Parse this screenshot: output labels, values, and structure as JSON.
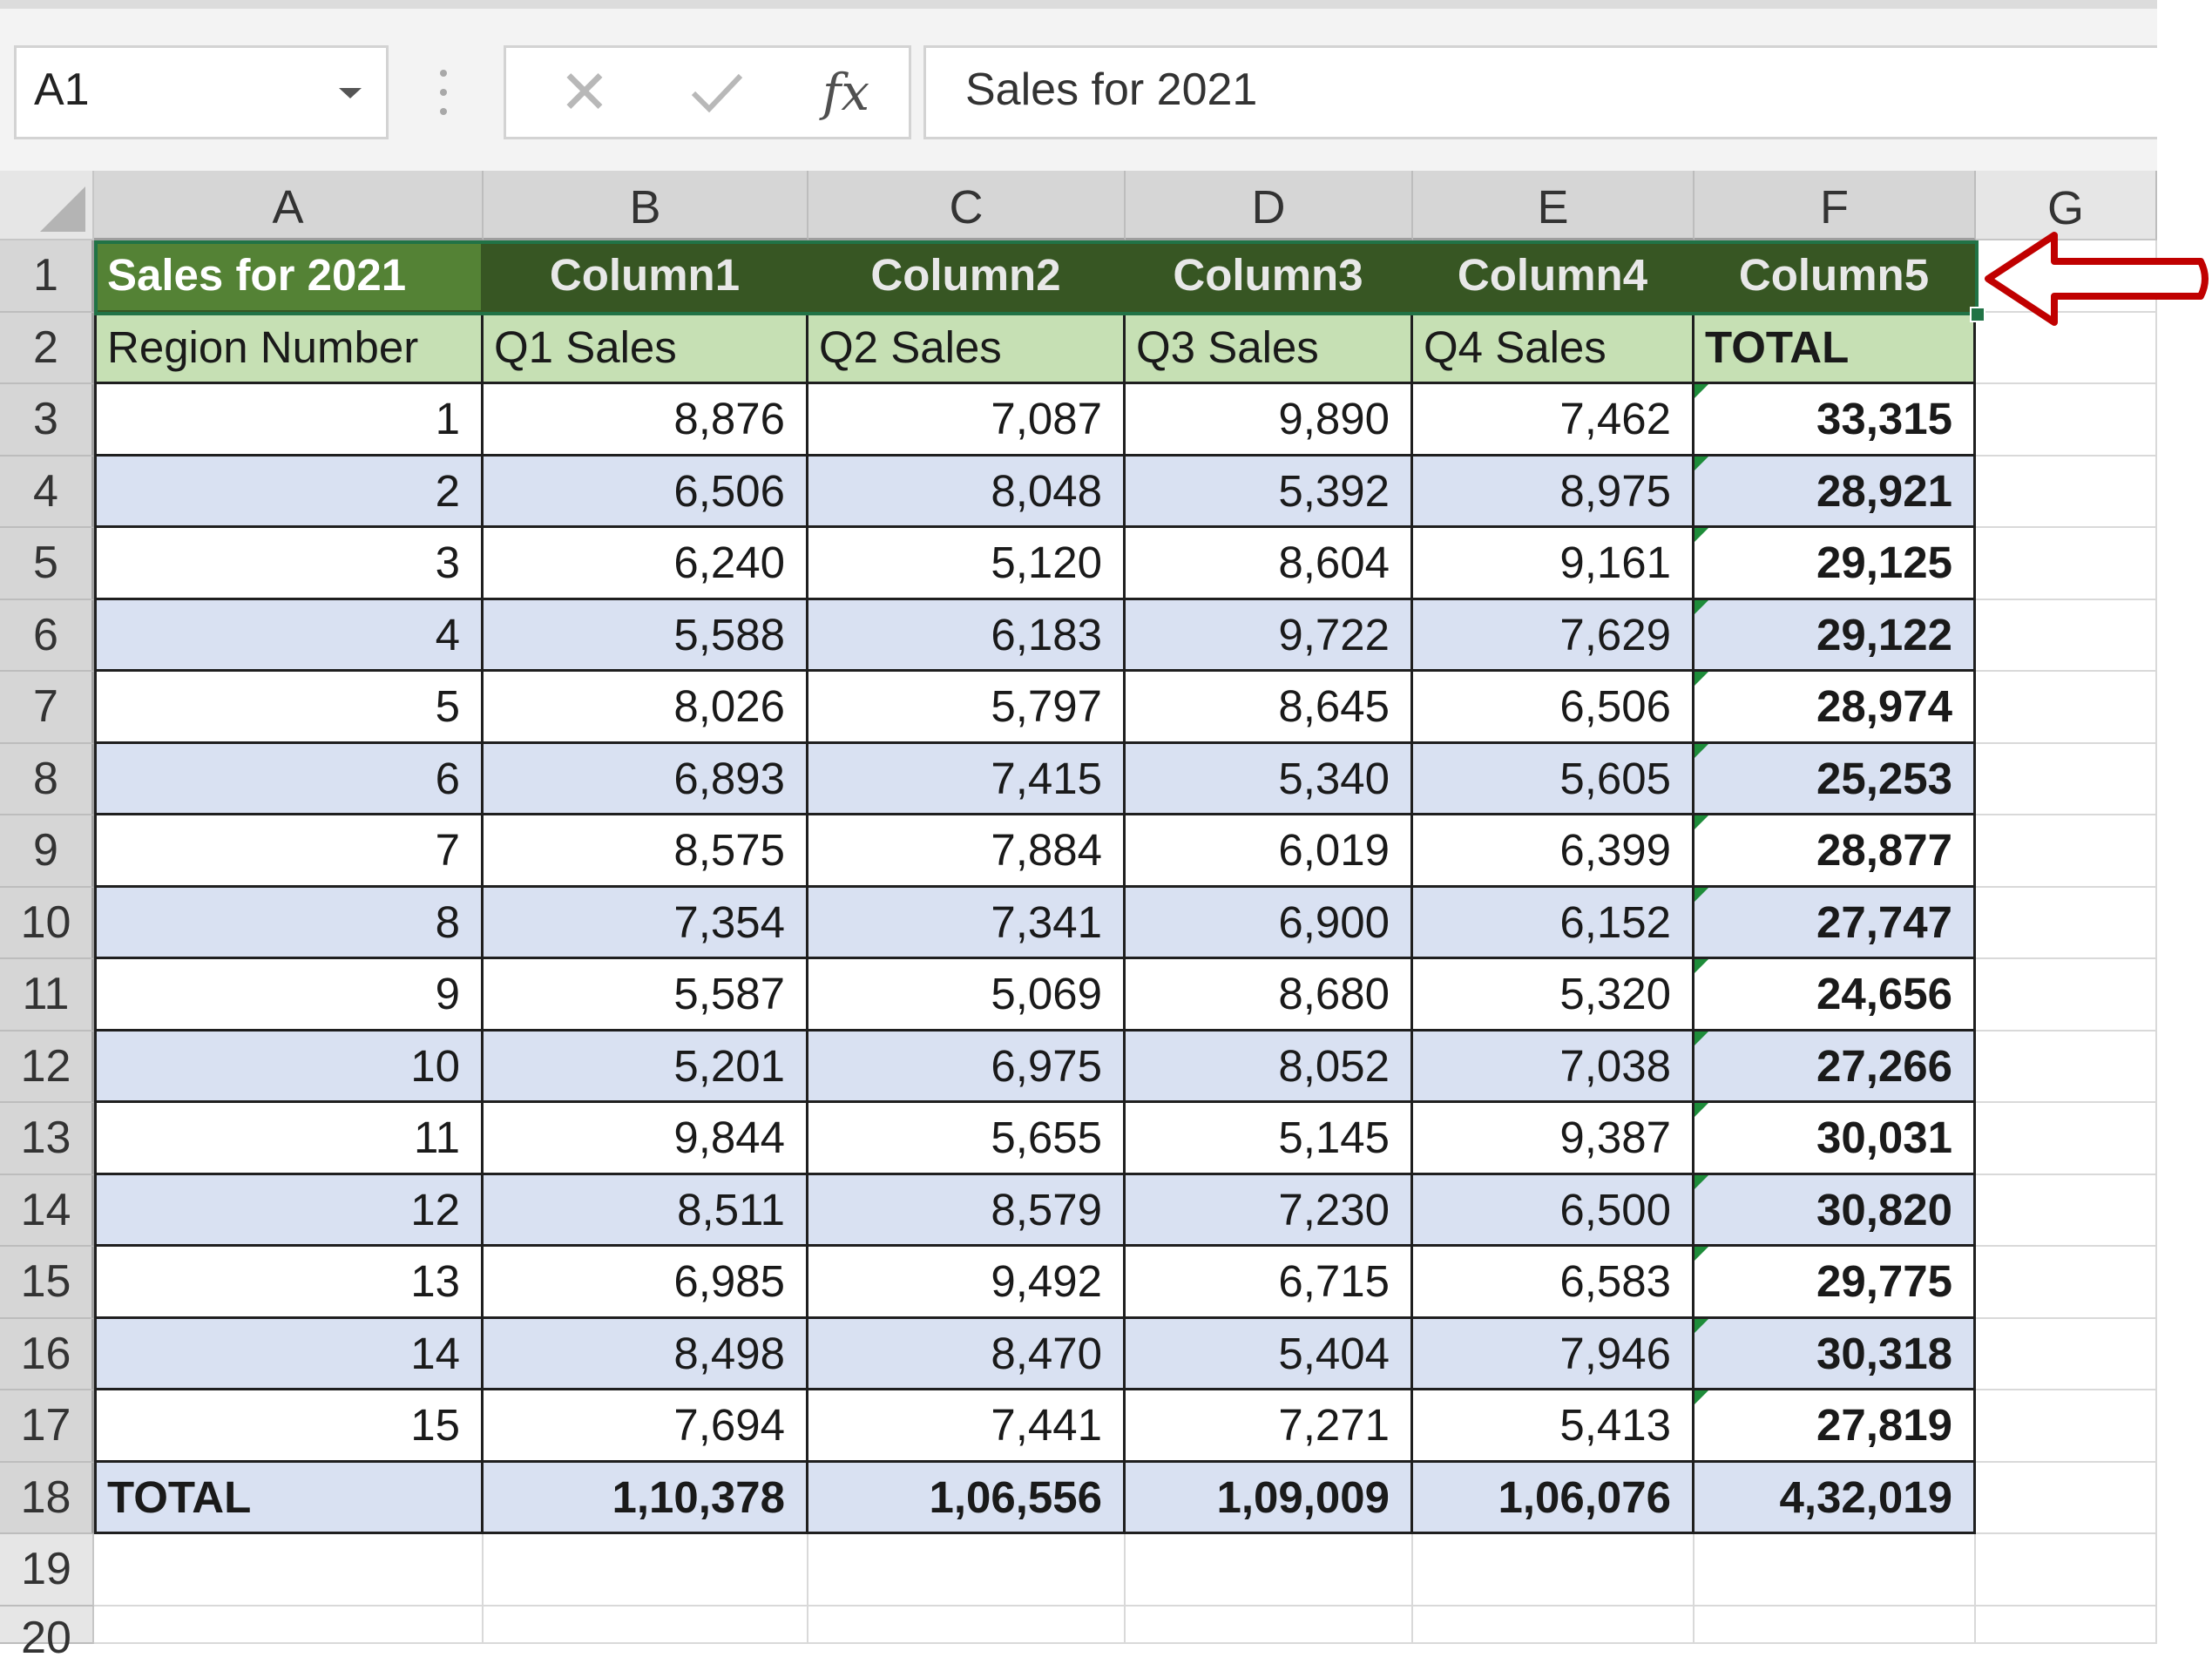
{
  "namebox": {
    "value": "A1"
  },
  "formula_bar": {
    "fx_label": "fx",
    "content": "Sales for 2021"
  },
  "columns": [
    "A",
    "B",
    "C",
    "D",
    "E",
    "F",
    "G"
  ],
  "rows": [
    "1",
    "2",
    "3",
    "4",
    "5",
    "6",
    "7",
    "8",
    "9",
    "10",
    "11",
    "12",
    "13",
    "14",
    "15",
    "16",
    "17",
    "18",
    "19",
    "20"
  ],
  "table": {
    "title_row": [
      "Sales for 2021",
      "Column1",
      "Column2",
      "Column3",
      "Column4",
      "Column5"
    ],
    "header_row": [
      "Region Number",
      "Q1 Sales",
      "Q2 Sales",
      "Q3 Sales",
      "Q4 Sales",
      "TOTAL"
    ],
    "data_rows": [
      [
        "1",
        "8,876",
        "7,087",
        "9,890",
        "7,462",
        "33,315"
      ],
      [
        "2",
        "6,506",
        "8,048",
        "5,392",
        "8,975",
        "28,921"
      ],
      [
        "3",
        "6,240",
        "5,120",
        "8,604",
        "9,161",
        "29,125"
      ],
      [
        "4",
        "5,588",
        "6,183",
        "9,722",
        "7,629",
        "29,122"
      ],
      [
        "5",
        "8,026",
        "5,797",
        "8,645",
        "6,506",
        "28,974"
      ],
      [
        "6",
        "6,893",
        "7,415",
        "5,340",
        "5,605",
        "25,253"
      ],
      [
        "7",
        "8,575",
        "7,884",
        "6,019",
        "6,399",
        "28,877"
      ],
      [
        "8",
        "7,354",
        "7,341",
        "6,900",
        "6,152",
        "27,747"
      ],
      [
        "9",
        "5,587",
        "5,069",
        "8,680",
        "5,320",
        "24,656"
      ],
      [
        "10",
        "5,201",
        "6,975",
        "8,052",
        "7,038",
        "27,266"
      ],
      [
        "11",
        "9,844",
        "5,655",
        "5,145",
        "9,387",
        "30,031"
      ],
      [
        "12",
        "8,511",
        "8,579",
        "7,230",
        "6,500",
        "30,820"
      ],
      [
        "13",
        "6,985",
        "9,492",
        "6,715",
        "6,583",
        "29,775"
      ],
      [
        "14",
        "8,498",
        "8,470",
        "5,404",
        "7,946",
        "30,318"
      ],
      [
        "15",
        "7,694",
        "7,441",
        "7,271",
        "5,413",
        "27,819"
      ]
    ],
    "total_row": [
      "TOTAL",
      "1,10,378",
      "1,06,556",
      "1,09,009",
      "1,06,076",
      "4,32,019"
    ]
  },
  "colors": {
    "title_fill": "#375623",
    "title_first_fill": "#548235",
    "header_fill": "#c6e0b4",
    "band_fill": "#d9e1f2",
    "selection": "#217346",
    "annotation_arrow": "#c00000"
  },
  "icons": [
    "cancel-icon",
    "enter-icon",
    "fx-icon",
    "dropdown-arrow-icon",
    "red-arrow-annotation"
  ]
}
